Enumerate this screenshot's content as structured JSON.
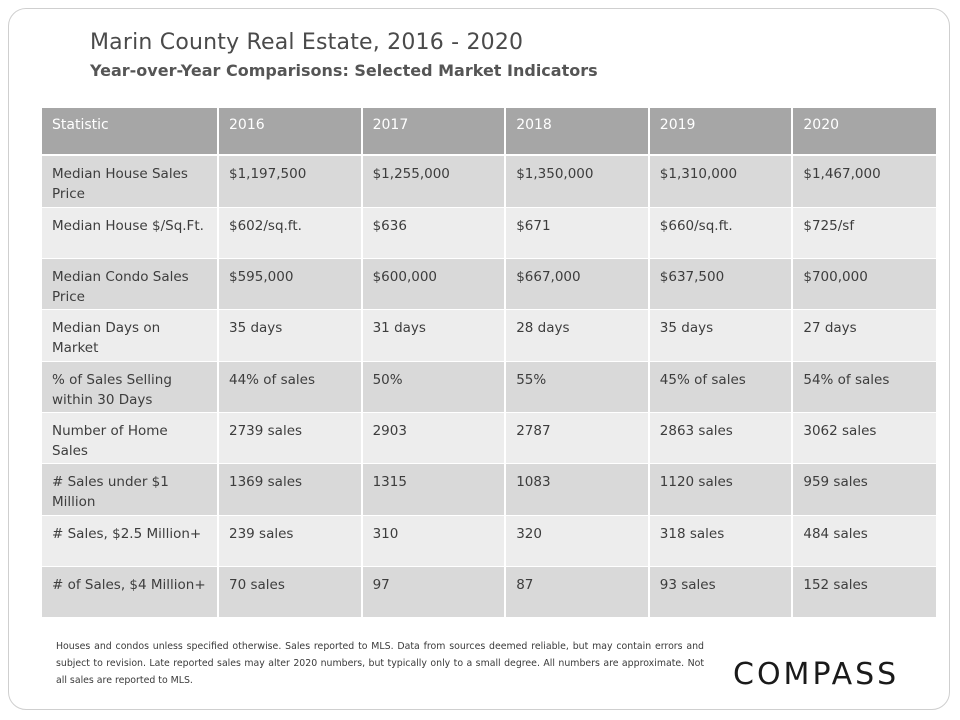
{
  "header": {
    "title": "Marin County Real Estate, 2016 - 2020",
    "subtitle": "Year-over-Year Comparisons: Selected Market Indicators"
  },
  "table": {
    "columns": [
      "Statistic",
      "2016",
      "2017",
      "2018",
      "2019",
      "2020"
    ],
    "rows": [
      [
        "Median House Sales Price",
        "$1,197,500",
        "$1,255,000",
        "$1,350,000",
        "$1,310,000",
        "$1,467,000"
      ],
      [
        "Median House $/Sq.Ft.",
        "$602/sq.ft.",
        "$636",
        "$671",
        "$660/sq.ft.",
        "$725/sf"
      ],
      [
        "Median Condo Sales Price",
        "$595,000",
        "$600,000",
        "$667,000",
        "$637,500",
        "$700,000"
      ],
      [
        "Median Days on Market",
        "35 days",
        "31 days",
        "28 days",
        "35 days",
        "27 days"
      ],
      [
        "% of Sales Selling within 30 Days",
        "44% of sales",
        "50%",
        "55%",
        "45% of sales",
        "54% of sales"
      ],
      [
        "Number of Home Sales",
        "2739 sales",
        "2903",
        "2787",
        "2863 sales",
        "3062 sales"
      ],
      [
        "# Sales under $1 Million",
        "1369 sales",
        "1315",
        "1083",
        "1120 sales",
        "959 sales"
      ],
      [
        "# Sales, $2.5 Million+",
        "239 sales",
        "310",
        "320",
        "318 sales",
        "484 sales"
      ],
      [
        "# of Sales, $4 Million+",
        "70 sales",
        "97",
        "87",
        "93 sales",
        "152 sales"
      ]
    ]
  },
  "footnote": "Houses and condos unless specified otherwise. Sales reported to MLS. Data from sources deemed reliable, but may contain errors and subject to revision. Late reported sales may alter 2020 numbers, but typically only to a small degree. All numbers are approximate. Not all sales are reported to MLS.",
  "logo": "COMPASS",
  "colors": {
    "header_bg": "#a6a6a6",
    "row_dark": "#d9d9d9",
    "row_light": "#ededed"
  }
}
